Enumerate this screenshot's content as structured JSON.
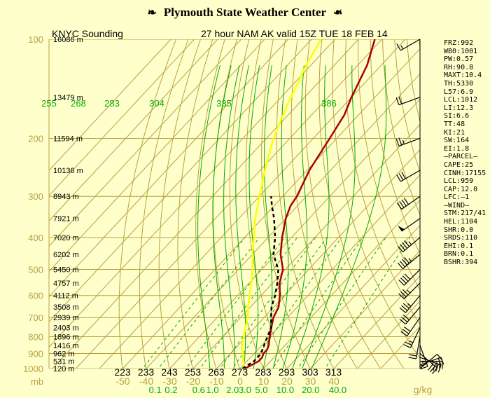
{
  "banner": {
    "title": "Plymouth State Weather Center",
    "left_logo": "wind-flag-icon",
    "right_logo": "wind-flag-icon"
  },
  "chart_data": {
    "type": "skew-t log-p sounding",
    "station_label": "KNYC Sounding",
    "valid_label": "27 hour NAM AK valid 15Z TUE 18 FEB 14",
    "pressure_unit": "mb",
    "mixing_ratio_unit": "g/kg",
    "pressure_levels": [
      100,
      200,
      300,
      400,
      500,
      600,
      700,
      800,
      900,
      1000
    ],
    "pressure_range": [
      100,
      1000
    ],
    "temperature_axis_labels": [
      "-50",
      "-40",
      "-30",
      "-20",
      "-10",
      "0",
      "10",
      "20",
      "30",
      "40"
    ],
    "temperature_axis_values": [
      -50,
      -40,
      -30,
      -20,
      -10,
      0,
      10,
      20,
      30,
      40
    ],
    "height_labels": [
      {
        "p": 100,
        "text": "16086 m"
      },
      {
        "p": 150,
        "text": "13479 m"
      },
      {
        "p": 200,
        "text": "11594 m"
      },
      {
        "p": 250,
        "text": "10136 m"
      },
      {
        "p": 300,
        "text": "8943 m"
      },
      {
        "p": 350,
        "text": "7921 m"
      },
      {
        "p": 400,
        "text": "7020 m"
      },
      {
        "p": 450,
        "text": "6202 m"
      },
      {
        "p": 500,
        "text": "5450 m"
      },
      {
        "p": 550,
        "text": "4757 m"
      },
      {
        "p": 600,
        "text": "4112 m"
      },
      {
        "p": 650,
        "text": "3508 m"
      },
      {
        "p": 700,
        "text": "2939 m"
      },
      {
        "p": 750,
        "text": "2403 m"
      },
      {
        "p": 800,
        "text": "1896 m"
      },
      {
        "p": 850,
        "text": "1416 m"
      },
      {
        "p": 900,
        "text": "962 m"
      },
      {
        "p": 950,
        "text": "531 m"
      },
      {
        "p": 1000,
        "text": "120 m"
      }
    ],
    "theta_labels_bottom": [
      "223",
      "233",
      "243",
      "253",
      "263",
      "273",
      "283",
      "293",
      "303",
      "313"
    ],
    "theta_values_bottom": [
      223,
      233,
      243,
      253,
      263,
      273,
      283,
      293,
      303,
      313
    ],
    "theta_e_labels": [
      "255",
      "268",
      "283",
      "304",
      "335",
      "386"
    ],
    "theta_e_values": [
      255,
      268,
      283,
      304,
      335,
      386
    ],
    "mixing_ratio_labels": [
      "0.1",
      "0.2",
      "0.6",
      "1.0",
      "2.0",
      "3.0",
      "5.0",
      "10.0",
      "20.0",
      "40.0"
    ],
    "mixing_ratio_values": [
      0.1,
      0.2,
      0.6,
      1.0,
      2.0,
      3.0,
      5.0,
      10.0,
      20.0,
      40.0
    ],
    "temperature_profile": {
      "color": "#aa0000",
      "points": [
        [
          1000,
          2
        ],
        [
          975,
          3.5
        ],
        [
          950,
          5
        ],
        [
          925,
          5
        ],
        [
          900,
          4
        ],
        [
          875,
          4
        ],
        [
          850,
          3
        ],
        [
          800,
          0
        ],
        [
          750,
          -3
        ],
        [
          700,
          -6
        ],
        [
          650,
          -8
        ],
        [
          600,
          -12
        ],
        [
          550,
          -17
        ],
        [
          500,
          -21
        ],
        [
          450,
          -28
        ],
        [
          400,
          -34
        ],
        [
          350,
          -40
        ],
        [
          320,
          -43
        ],
        [
          300,
          -44
        ],
        [
          250,
          -49
        ],
        [
          200,
          -53
        ],
        [
          170,
          -56
        ],
        [
          150,
          -60
        ],
        [
          120,
          -66
        ],
        [
          100,
          -73
        ]
      ]
    },
    "dewpoint_profile": {
      "color": "#000000",
      "style": "dashed",
      "points": [
        [
          1000,
          1
        ],
        [
          975,
          2
        ],
        [
          950,
          3
        ],
        [
          925,
          3
        ],
        [
          900,
          3
        ],
        [
          875,
          2
        ],
        [
          850,
          1
        ],
        [
          800,
          -1
        ],
        [
          750,
          -3
        ],
        [
          700,
          -7
        ],
        [
          650,
          -11
        ],
        [
          600,
          -14
        ],
        [
          550,
          -18
        ],
        [
          500,
          -23
        ],
        [
          450,
          -31
        ],
        [
          400,
          -37
        ],
        [
          350,
          -45
        ],
        [
          320,
          -51
        ],
        [
          300,
          -55
        ]
      ]
    },
    "parcel_profile": {
      "color": "#ffff00",
      "points": [
        [
          1000,
          2
        ],
        [
          950,
          -1.5
        ],
        [
          900,
          -5
        ],
        [
          850,
          -8.5
        ],
        [
          800,
          -11
        ],
        [
          750,
          -14
        ],
        [
          700,
          -17
        ],
        [
          650,
          -21
        ],
        [
          600,
          -25
        ],
        [
          550,
          -29
        ],
        [
          500,
          -34
        ],
        [
          450,
          -40
        ],
        [
          400,
          -46
        ],
        [
          350,
          -53
        ],
        [
          300,
          -60
        ],
        [
          250,
          -68
        ],
        [
          200,
          -77
        ],
        [
          160,
          -84
        ],
        [
          120,
          -92
        ],
        [
          100,
          -96
        ]
      ]
    },
    "winds": [
      {
        "p": 1000,
        "dir": 50,
        "spd": 10
      },
      {
        "p": 975,
        "dir": 70,
        "spd": 20
      },
      {
        "p": 950,
        "dir": 90,
        "spd": 30
      },
      {
        "p": 925,
        "dir": 110,
        "spd": 35
      },
      {
        "p": 900,
        "dir": 130,
        "spd": 30
      },
      {
        "p": 850,
        "dir": 160,
        "spd": 25
      },
      {
        "p": 800,
        "dir": 190,
        "spd": 20
      },
      {
        "p": 750,
        "dir": 205,
        "spd": 25
      },
      {
        "p": 700,
        "dir": 215,
        "spd": 30
      },
      {
        "p": 650,
        "dir": 220,
        "spd": 30
      },
      {
        "p": 600,
        "dir": 220,
        "spd": 35
      },
      {
        "p": 550,
        "dir": 225,
        "spd": 35
      },
      {
        "p": 500,
        "dir": 225,
        "spd": 40
      },
      {
        "p": 450,
        "dir": 230,
        "spd": 45
      },
      {
        "p": 400,
        "dir": 230,
        "spd": 45
      },
      {
        "p": 350,
        "dir": 235,
        "spd": 50
      },
      {
        "p": 300,
        "dir": 235,
        "spd": 40
      },
      {
        "p": 250,
        "dir": 240,
        "spd": 30
      },
      {
        "p": 200,
        "dir": 250,
        "spd": 25
      },
      {
        "p": 150,
        "dir": 250,
        "spd": 20
      },
      {
        "p": 100,
        "dir": 240,
        "spd": 15
      }
    ],
    "colors": {
      "isobar_temp": "#b8a040",
      "adiabat": "#b8a040",
      "moist_adiabat": "#00aa00",
      "mixing_ratio": "#00aa00",
      "axis_label": "#b8a040",
      "theta_label": "#000000",
      "wind_barb": "#000000"
    },
    "stats": [
      "FRZ:992",
      "WB0:1001",
      "PW:0.57",
      "RH:90.8",
      "MAXT:10.4",
      "TH:5330",
      "L57:6.9",
      "LCL:1012",
      "LI:12.3",
      "SI:6.6",
      "TT:48",
      "KI:21",
      "SW:164",
      "EI:1.8",
      "–PARCEL–",
      "CAPE:25",
      "CINH:17155",
      "LCL:959",
      "CAP:12.0",
      "LFC:–1",
      "–WIND–",
      "STM:217/41",
      "HEL:1104",
      "SHR:0.0",
      "SRDS:110",
      "EHI:0.1",
      "BRN:0.1",
      "BSHR:394"
    ]
  }
}
